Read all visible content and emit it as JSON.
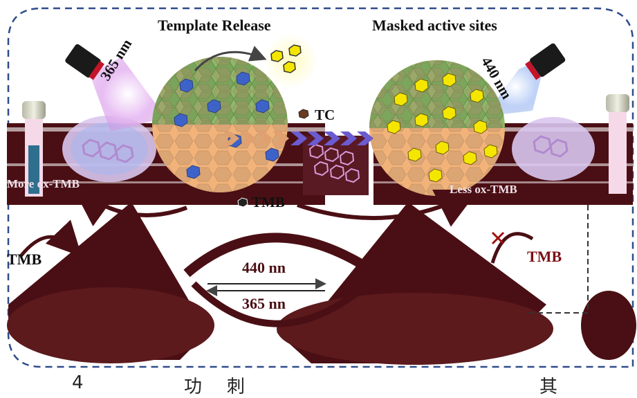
{
  "labels": {
    "template_release": "Template Release",
    "masked_active_sites": "Masked active sites",
    "uv_365": "365 nm",
    "blue_440": "440 nm",
    "tc": "TC",
    "tmb_center": "TMB",
    "more_ox_tmb": "More ox-TMB",
    "less_ox_tmb": "Less ox-TMB",
    "tmb_left": "TMB",
    "tmb_right": "TMB",
    "switch_440": "440 nn",
    "switch_365": "365 nn",
    "bottom_4": "4",
    "bottom_gong": "功",
    "bottom_ci": "刺",
    "bottom_qi": "其"
  },
  "colors": {
    "dashed_border": "#2e4b8a",
    "maroon": "#4a0f14",
    "shell_green": "#8fb86a",
    "core_orange": "#f2b37a",
    "hex_yellow": "#f5e600",
    "hex_blue": "#3e63c8",
    "chevron_purple": "#6b5bd0",
    "uv_glow": "#d79ae8",
    "blue_glow": "#9fb8ef"
  }
}
